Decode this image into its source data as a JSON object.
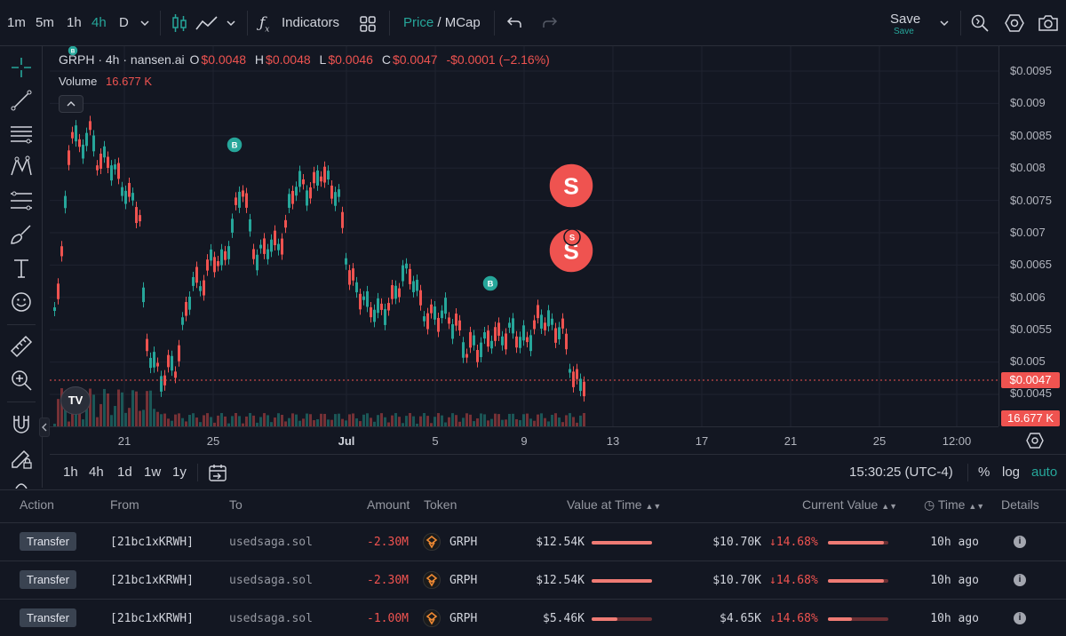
{
  "toolbar": {
    "intervals": [
      "1m",
      "5m",
      "1h",
      "4h",
      "D"
    ],
    "active_interval": "4h",
    "indicators_label": "Indicators",
    "price_label": "Price",
    "mcap_label": "MCap",
    "save_label": "Save",
    "save_sub_label": "Save"
  },
  "legend": {
    "symbol": "GRPH · 4h · nansen.ai",
    "o_label": "O",
    "o_value": "$0.0048",
    "h_label": "H",
    "h_value": "$0.0048",
    "l_label": "L",
    "l_value": "$0.0046",
    "c_label": "C",
    "c_value": "$0.0047",
    "change": "-$0.0001 (−2.16%)",
    "volume_label": "Volume",
    "volume_value": "16.677 K"
  },
  "price_axis": [
    "$0.0095",
    "$0.009",
    "$0.0085",
    "$0.008",
    "$0.0075",
    "$0.007",
    "$0.0065",
    "$0.006",
    "$0.0055",
    "$0.005",
    "$0.0045"
  ],
  "current_price_tag": "$0.0047",
  "volume_tag": "16.677 K",
  "time_axis": [
    "21",
    "25",
    "Jul",
    "5",
    "9",
    "13",
    "17",
    "21",
    "25",
    "12:00"
  ],
  "markers": {
    "buy": "B",
    "sell": "S"
  },
  "range_bar": {
    "ranges": [
      "1h",
      "4h",
      "1d",
      "1w",
      "1y"
    ],
    "clock": "15:30:25 (UTC-4)",
    "percent": "%",
    "log": "log",
    "auto": "auto"
  },
  "table": {
    "headers": {
      "action": "Action",
      "from": "From",
      "to": "To",
      "amount": "Amount",
      "token": "Token",
      "value_at_time": "Value at Time",
      "current_value": "Current Value",
      "time": "Time",
      "details": "Details"
    },
    "rows": [
      {
        "action": "Transfer",
        "from": "[21bc1xKRWH]",
        "to": "usedsaga.sol",
        "amount": "-2.30M",
        "token": "GRPH",
        "value_at_time": "$12.54K",
        "vat_fill": 1.0,
        "current_value": "$10.70K",
        "change": "↓14.68%",
        "cv_fill": 0.92,
        "time": "10h ago"
      },
      {
        "action": "Transfer",
        "from": "[21bc1xKRWH]",
        "to": "usedsaga.sol",
        "amount": "-2.30M",
        "token": "GRPH",
        "value_at_time": "$12.54K",
        "vat_fill": 1.0,
        "current_value": "$10.70K",
        "change": "↓14.68%",
        "cv_fill": 0.92,
        "time": "10h ago"
      },
      {
        "action": "Transfer",
        "from": "[21bc1xKRWH]",
        "to": "usedsaga.sol",
        "amount": "-1.00M",
        "token": "GRPH",
        "value_at_time": "$5.46K",
        "vat_fill": 0.43,
        "current_value": "$4.65K",
        "change": "↓14.68%",
        "cv_fill": 0.4,
        "time": "10h ago"
      }
    ]
  },
  "colors": {
    "up": "#26a69a",
    "down": "#ef5350",
    "accent": "#26a69a"
  }
}
